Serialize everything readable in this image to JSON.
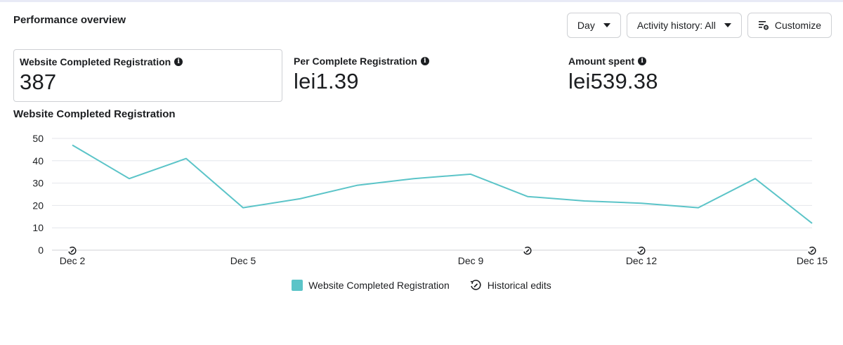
{
  "header": {
    "title": "Performance overview",
    "day_label": "Day",
    "activity_label": "Activity history: All",
    "customize_label": "Customize"
  },
  "metrics": [
    {
      "label": "Website Completed Registration",
      "value": "387"
    },
    {
      "label": "Per Complete Registration",
      "value": "lei1.39"
    },
    {
      "label": "Amount spent",
      "value": "lei539.38"
    }
  ],
  "colors": {
    "series": "#5bc4c8",
    "grid": "#e4e6eb",
    "text": "#1c1e21"
  },
  "chart_data": {
    "type": "line",
    "title": "Website Completed Registration",
    "xlabel": "",
    "ylabel": "",
    "ylim": [
      0,
      50
    ],
    "yticks": [
      0,
      10,
      20,
      30,
      40,
      50
    ],
    "x": [
      "Dec 2",
      "Dec 3",
      "Dec 4",
      "Dec 5",
      "Dec 6",
      "Dec 7",
      "Dec 8",
      "Dec 9",
      "Dec 10",
      "Dec 11",
      "Dec 12",
      "Dec 13",
      "Dec 14",
      "Dec 15"
    ],
    "xtick_labels": [
      "Dec 2",
      "Dec 5",
      "Dec 9",
      "Dec 12",
      "Dec 15"
    ],
    "series": [
      {
        "name": "Website Completed Registration",
        "values": [
          47,
          32,
          41,
          19,
          23,
          29,
          32,
          34,
          24,
          22,
          21,
          19,
          32,
          12
        ]
      }
    ],
    "historical_edits": [
      "Dec 2",
      "Dec 10",
      "Dec 12",
      "Dec 15"
    ],
    "grid": true,
    "legend": "bottom-center",
    "legend_entries": [
      "Website Completed Registration",
      "Historical edits"
    ]
  }
}
